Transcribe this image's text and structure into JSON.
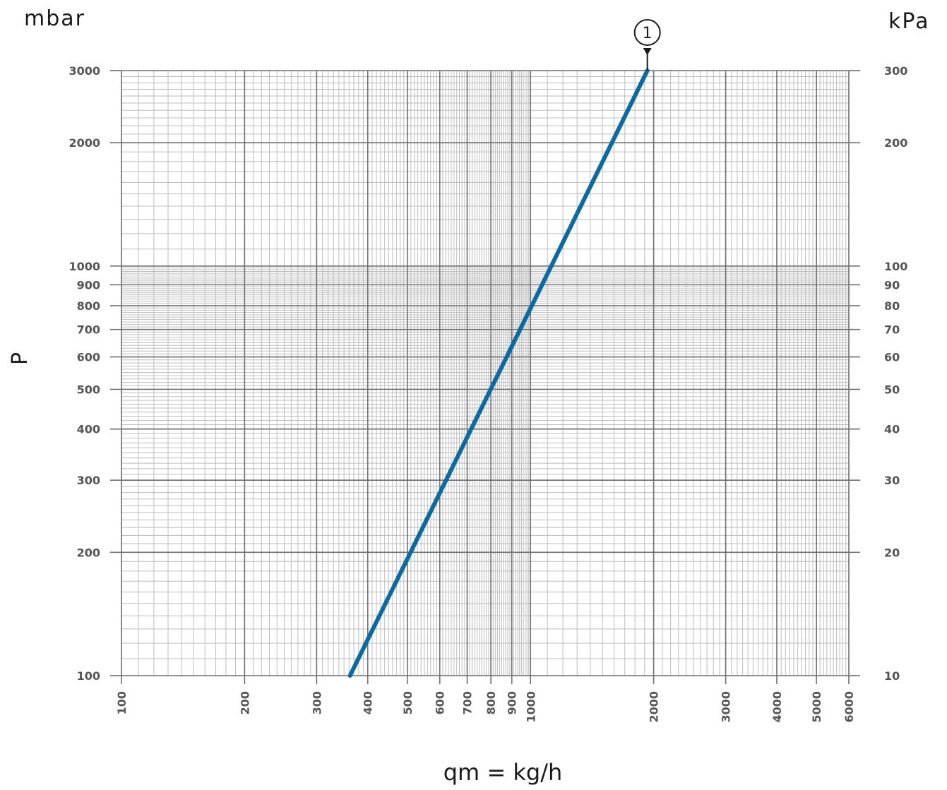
{
  "chart_data": {
    "type": "line",
    "title": "",
    "xlabel": "qm = kg/h",
    "ylabel": "P",
    "y_unit_left": "mbar",
    "y_unit_right": "kPa",
    "x_scale": "log",
    "y_scale": "log",
    "xlim": [
      100,
      6000
    ],
    "ylim": [
      100,
      3000
    ],
    "grid": true,
    "x_ticks": [
      "100",
      "200",
      "300",
      "400",
      "500",
      "600",
      "700",
      "800",
      "900",
      "1000",
      "2000",
      "3000",
      "4000",
      "5000",
      "6000"
    ],
    "y_ticks_left": [
      "100",
      "200",
      "300",
      "400",
      "500",
      "600",
      "700",
      "800",
      "900",
      "1000",
      "2000",
      "3000"
    ],
    "y_ticks_right": [
      "10",
      "20",
      "30",
      "40",
      "50",
      "60",
      "70",
      "80",
      "90",
      "100",
      "200",
      "300"
    ],
    "series": [
      {
        "name": "1",
        "x": [
          362,
          1930
        ],
        "y": [
          100,
          3000
        ]
      }
    ],
    "colors": {
      "series": "#0b6aa0",
      "grid_major": "#6e6e6e",
      "grid_minor": "#bdbdbd",
      "text": "#555555"
    }
  }
}
